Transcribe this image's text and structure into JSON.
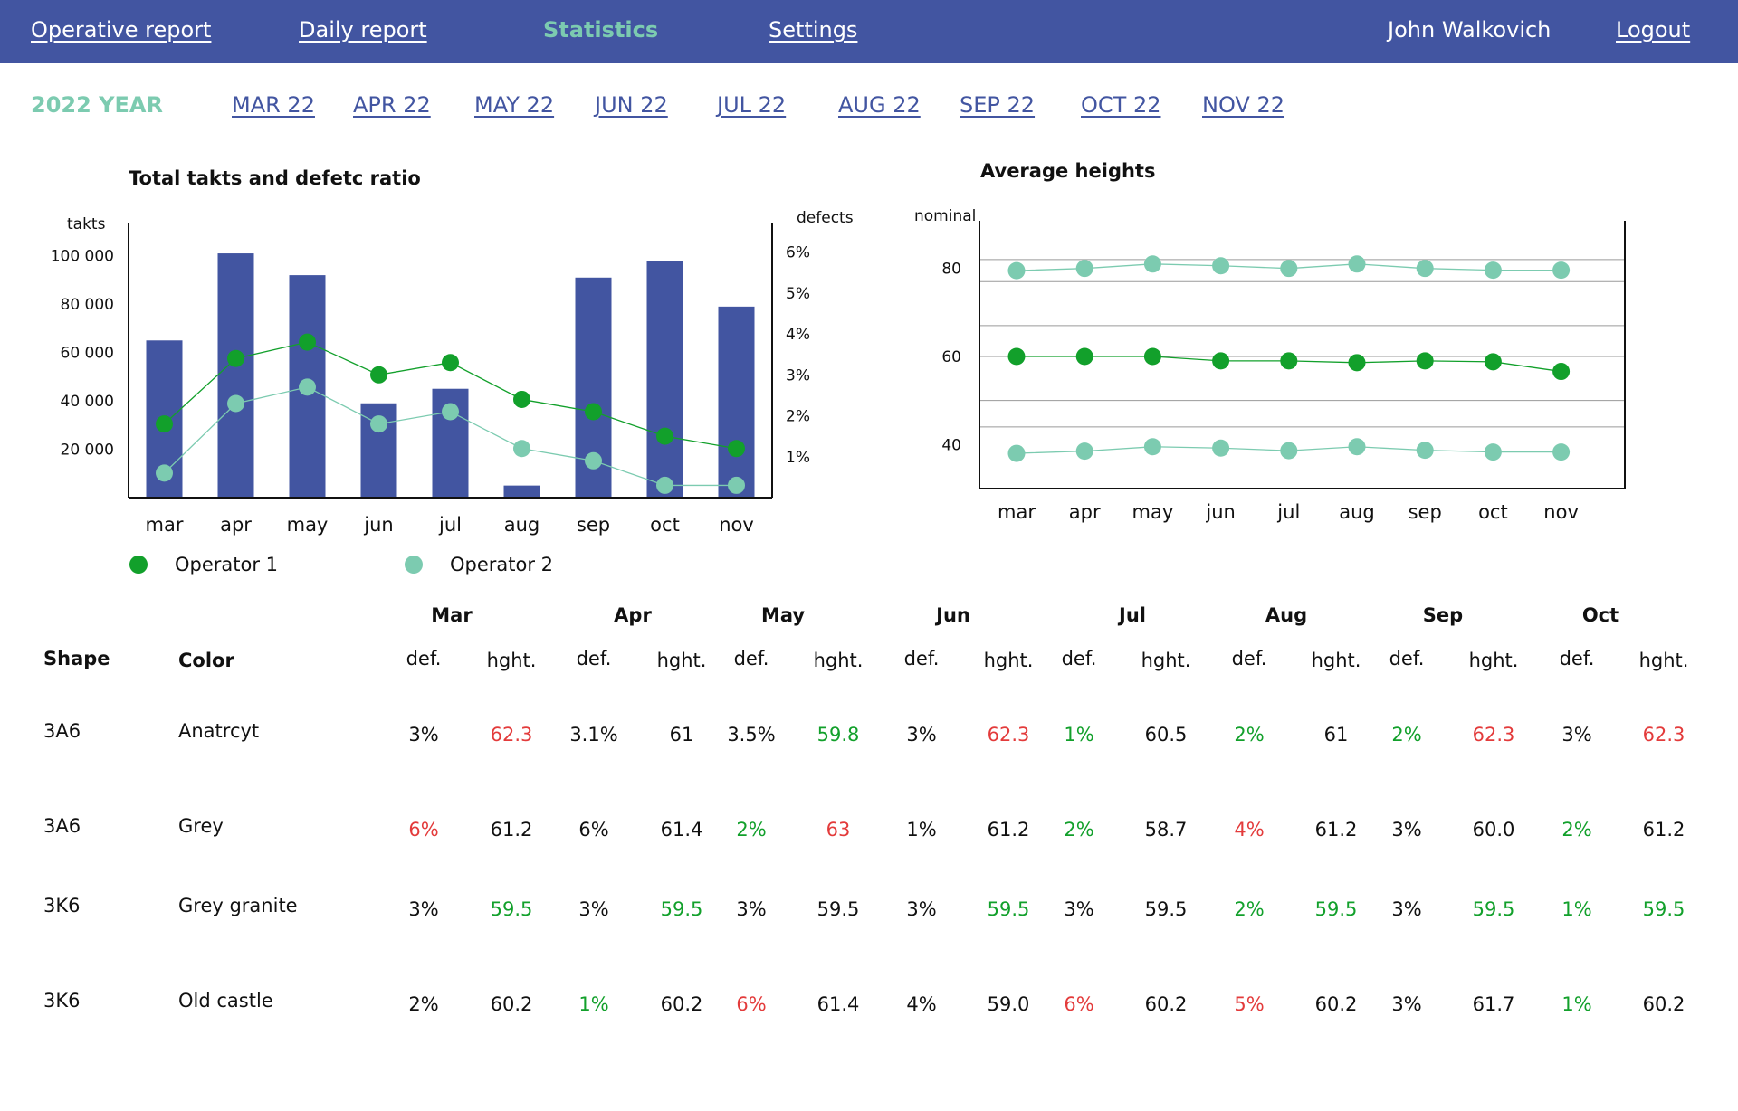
{
  "nav": {
    "operative_report": "Operative report",
    "daily_report": "Daily report",
    "statistics": "Statistics",
    "settings": "Settings",
    "user_name": "John Walkovich",
    "logout": "Logout"
  },
  "period": {
    "year_label": "2022 YEAR",
    "months": [
      "MAR 22",
      "APR 22",
      "MAY 22",
      "JUN 22",
      "JUL 22",
      "AUG 22",
      "SEP 22",
      "OCT 22",
      "NOV 22"
    ]
  },
  "legend": {
    "operator1": "Operator 1",
    "operator2": "Operator 2"
  },
  "colors": {
    "brand": "#4255a1",
    "accent": "#7ccbb0",
    "operator1": "#12a02b",
    "operator2": "#7ccbb0",
    "good": "#12a02b",
    "bad": "#e33b3b"
  },
  "chart_data": [
    {
      "type": "bar",
      "title": "Total takts and defetc ratio",
      "ylabel": "takts",
      "y2label": "defects",
      "categories": [
        "mar",
        "apr",
        "may",
        "jun",
        "jul",
        "aug",
        "sep",
        "oct",
        "nov"
      ],
      "ylim": [
        0,
        110000
      ],
      "y_ticks": [
        {
          "value": 20000,
          "label": "20 000"
        },
        {
          "value": 40000,
          "label": "40 000"
        },
        {
          "value": 60000,
          "label": "60 000"
        },
        {
          "value": 80000,
          "label": "80 000"
        },
        {
          "value": 100000,
          "label": "100 000"
        }
      ],
      "y2lim": [
        0,
        6.5
      ],
      "y2_ticks": [
        {
          "value": 1,
          "label": "1%"
        },
        {
          "value": 2,
          "label": "2%"
        },
        {
          "value": 3,
          "label": "3%"
        },
        {
          "value": 4,
          "label": "4%"
        },
        {
          "value": 5,
          "label": "5%"
        },
        {
          "value": 6,
          "label": "6%"
        }
      ],
      "bars": {
        "values": [
          65000,
          101000,
          92000,
          39000,
          45000,
          5000,
          91000,
          98000,
          79000
        ]
      },
      "series": [
        {
          "name": "Operator 1",
          "axis": "defects",
          "values": [
            1.8,
            3.4,
            3.8,
            3.0,
            3.3,
            2.4,
            2.1,
            1.5,
            1.2
          ]
        },
        {
          "name": "Operator 2",
          "axis": "defects",
          "values": [
            0.6,
            2.3,
            2.7,
            1.8,
            2.1,
            1.2,
            0.9,
            0.3,
            0.3
          ]
        }
      ],
      "grid": false,
      "legend_position": "bottom-left"
    },
    {
      "type": "line",
      "title": "Average heights",
      "ylabel": "nominal",
      "categories": [
        "mar",
        "apr",
        "may",
        "jun",
        "jul",
        "aug",
        "sep",
        "oct",
        "nov"
      ],
      "ylim": [
        30,
        90
      ],
      "y_ticks": [
        {
          "value": 40,
          "label": "40"
        },
        {
          "value": 60,
          "label": "60"
        },
        {
          "value": 80,
          "label": "80"
        }
      ],
      "guides": [
        82,
        77,
        67,
        60,
        50,
        44
      ],
      "series": [
        {
          "name": "Operator 2",
          "values": [
            79.5,
            80,
            81,
            80.6,
            80,
            81,
            80,
            79.6,
            79.6
          ]
        },
        {
          "name": "Operator 1",
          "values": [
            60,
            60,
            60,
            59,
            59,
            58.6,
            59,
            58.8,
            56.6
          ]
        },
        {
          "name": "Operator 2",
          "values": [
            38,
            38.5,
            39.5,
            39.2,
            38.6,
            39.5,
            38.7,
            38.3,
            38.3
          ]
        }
      ],
      "grid": false
    }
  ],
  "table": {
    "headers": {
      "shape": "Shape",
      "color": "Color",
      "def": "def.",
      "hght": "hght."
    },
    "months": [
      "Mar",
      "Apr",
      "May",
      "Jun",
      "Jul",
      "Aug",
      "Sep",
      "Oct"
    ],
    "rows": [
      {
        "shape": "3A6",
        "color": "Anatrcyt",
        "cells": [
          {
            "def": "3%",
            "def_status": "normal",
            "hght": "62.3",
            "hght_status": "bad"
          },
          {
            "def": "3.1%",
            "def_status": "normal",
            "hght": "61",
            "hght_status": "normal"
          },
          {
            "def": "3.5%",
            "def_status": "normal",
            "hght": "59.8",
            "hght_status": "good"
          },
          {
            "def": "3%",
            "def_status": "normal",
            "hght": "62.3",
            "hght_status": "bad"
          },
          {
            "def": "1%",
            "def_status": "good",
            "hght": "60.5",
            "hght_status": "normal"
          },
          {
            "def": "2%",
            "def_status": "good",
            "hght": "61",
            "hght_status": "normal"
          },
          {
            "def": "2%",
            "def_status": "good",
            "hght": "62.3",
            "hght_status": "bad"
          },
          {
            "def": "3%",
            "def_status": "normal",
            "hght": "62.3",
            "hght_status": "bad"
          }
        ]
      },
      {
        "shape": "3A6",
        "color": "Grey",
        "cells": [
          {
            "def": "6%",
            "def_status": "bad",
            "hght": "61.2",
            "hght_status": "normal"
          },
          {
            "def": "6%",
            "def_status": "normal",
            "hght": "61.4",
            "hght_status": "normal"
          },
          {
            "def": "2%",
            "def_status": "good",
            "hght": "63",
            "hght_status": "bad"
          },
          {
            "def": "1%",
            "def_status": "normal",
            "hght": "61.2",
            "hght_status": "normal"
          },
          {
            "def": "2%",
            "def_status": "good",
            "hght": "58.7",
            "hght_status": "normal"
          },
          {
            "def": "4%",
            "def_status": "bad",
            "hght": "61.2",
            "hght_status": "normal"
          },
          {
            "def": "3%",
            "def_status": "normal",
            "hght": "60.0",
            "hght_status": "normal"
          },
          {
            "def": "2%",
            "def_status": "good",
            "hght": "61.2",
            "hght_status": "normal"
          }
        ]
      },
      {
        "shape": "3K6",
        "color": "Grey granite",
        "cells": [
          {
            "def": "3%",
            "def_status": "normal",
            "hght": "59.5",
            "hght_status": "good"
          },
          {
            "def": "3%",
            "def_status": "normal",
            "hght": "59.5",
            "hght_status": "good"
          },
          {
            "def": "3%",
            "def_status": "normal",
            "hght": "59.5",
            "hght_status": "normal"
          },
          {
            "def": "3%",
            "def_status": "normal",
            "hght": "59.5",
            "hght_status": "good"
          },
          {
            "def": "3%",
            "def_status": "normal",
            "hght": "59.5",
            "hght_status": "normal"
          },
          {
            "def": "2%",
            "def_status": "good",
            "hght": "59.5",
            "hght_status": "good"
          },
          {
            "def": "3%",
            "def_status": "normal",
            "hght": "59.5",
            "hght_status": "good"
          },
          {
            "def": "1%",
            "def_status": "good",
            "hght": "59.5",
            "hght_status": "good"
          }
        ]
      },
      {
        "shape": "3K6",
        "color": "Old castle",
        "cells": [
          {
            "def": "2%",
            "def_status": "normal",
            "hght": "60.2",
            "hght_status": "normal"
          },
          {
            "def": "1%",
            "def_status": "good",
            "hght": "60.2",
            "hght_status": "normal"
          },
          {
            "def": "6%",
            "def_status": "bad",
            "hght": "61.4",
            "hght_status": "normal"
          },
          {
            "def": "4%",
            "def_status": "normal",
            "hght": "59.0",
            "hght_status": "normal"
          },
          {
            "def": "6%",
            "def_status": "bad",
            "hght": "60.2",
            "hght_status": "normal"
          },
          {
            "def": "5%",
            "def_status": "bad",
            "hght": "60.2",
            "hght_status": "normal"
          },
          {
            "def": "3%",
            "def_status": "normal",
            "hght": "61.7",
            "hght_status": "normal"
          },
          {
            "def": "1%",
            "def_status": "good",
            "hght": "60.2",
            "hght_status": "normal"
          }
        ]
      }
    ]
  }
}
